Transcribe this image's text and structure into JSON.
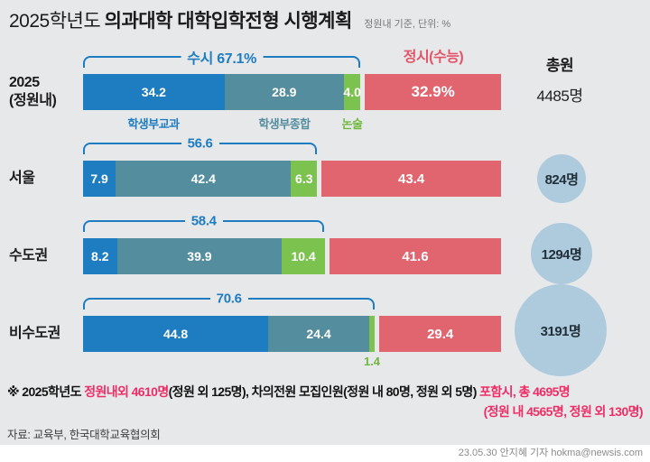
{
  "header": {
    "title_prefix": "2025학년도",
    "title_main": "의과대학 대학입학전형 시행계획",
    "subtitle": "정원내 기준, 단위: %"
  },
  "colors": {
    "bg": "#e7e8ea",
    "blue": "#1e7dc1",
    "teal": "#548d9d",
    "green": "#7cc24e",
    "red": "#e0656f",
    "jungsi_label": "#e25568",
    "circle": "#aecbdd",
    "accent": "#ed2d66"
  },
  "chart_data": {
    "type": "bar",
    "orientation": "horizontal",
    "stacked": true,
    "unit": "%",
    "x_range": [
      0,
      100
    ],
    "susi_label": "수시",
    "jungsi_header": "정시(수능)",
    "total_header": "총원",
    "segment_names": [
      "학생부교과",
      "학생부종합",
      "논술",
      "정시(수능)"
    ],
    "legend": [
      "학생부교과",
      "학생부종합",
      "논술"
    ],
    "rows": [
      {
        "label_lines": [
          "2025",
          "(정원내)"
        ],
        "bracket_label": "수시 67.1%",
        "susi_total": 67.1,
        "segments": [
          {
            "name": "학생부교과",
            "value": 34.2,
            "display": "34.2"
          },
          {
            "name": "학생부종합",
            "value": 28.9,
            "display": "28.9"
          },
          {
            "name": "논술",
            "value": 4.0,
            "display": "4.0"
          }
        ],
        "jungsi": {
          "value": 32.9,
          "display": "32.9%"
        },
        "total": {
          "text": "4485명",
          "shape": "text"
        }
      },
      {
        "label_lines": [
          "서울"
        ],
        "bracket_label": "56.6",
        "susi_total": 56.6,
        "segments": [
          {
            "name": "학생부교과",
            "value": 7.9,
            "display": "7.9"
          },
          {
            "name": "학생부종합",
            "value": 42.4,
            "display": "42.4"
          },
          {
            "name": "논술",
            "value": 6.3,
            "display": "6.3"
          }
        ],
        "jungsi": {
          "value": 43.4,
          "display": "43.4"
        },
        "total": {
          "text": "824명",
          "shape": "circle",
          "diameter": 54
        }
      },
      {
        "label_lines": [
          "수도권"
        ],
        "bracket_label": "58.4",
        "susi_total": 58.4,
        "segments": [
          {
            "name": "학생부교과",
            "value": 8.2,
            "display": "8.2"
          },
          {
            "name": "학생부종합",
            "value": 39.9,
            "display": "39.9"
          },
          {
            "name": "논술",
            "value": 10.4,
            "display": "10.4"
          }
        ],
        "jungsi": {
          "value": 41.6,
          "display": "41.6"
        },
        "total": {
          "text": "1294명",
          "shape": "circle",
          "diameter": 68
        }
      },
      {
        "label_lines": [
          "비수도권"
        ],
        "bracket_label": "70.6",
        "susi_total": 70.6,
        "segments": [
          {
            "name": "학생부교과",
            "value": 44.8,
            "display": "44.8"
          },
          {
            "name": "학생부종합",
            "value": 24.4,
            "display": "24.4"
          },
          {
            "name": "논술",
            "value": 1.4,
            "display": "1.4",
            "label_below": true
          }
        ],
        "jungsi": {
          "value": 29.4,
          "display": "29.4"
        },
        "total": {
          "text": "3191명",
          "shape": "circle",
          "diameter": 102
        }
      }
    ]
  },
  "footnote": {
    "line1_parts": [
      {
        "text": "※ 2025학년도 ",
        "style": "normal"
      },
      {
        "text": "정원내외 4610명",
        "style": "red"
      },
      {
        "text": "(정원 외 125명), 차의전원 모집인원(정원 내 80명, 정원 외 5명) ",
        "style": "normal"
      },
      {
        "text": "포함시, 총 4695명",
        "style": "red"
      }
    ],
    "line2": "(정원 내 4565명, 정원 외 130명)",
    "source": "자료: 교육부, 한국대학교육협의회",
    "credit": "23.05.30 안지혜 기자 hokma@newsis.com"
  }
}
